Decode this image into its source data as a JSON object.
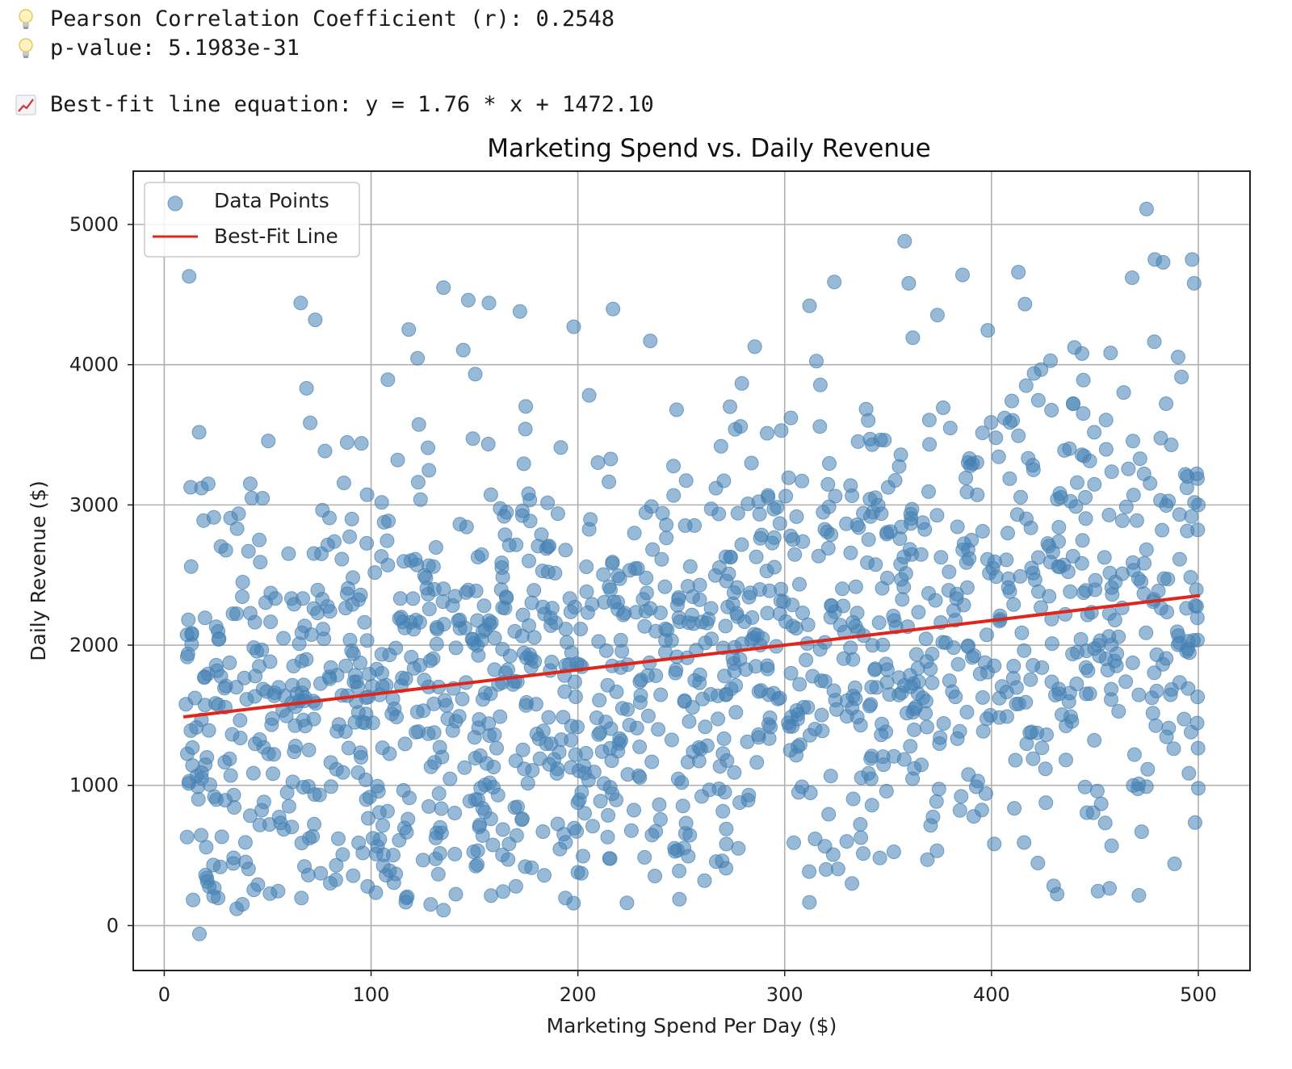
{
  "console": {
    "pearson": "Pearson Correlation Coefficient (r): 0.2548",
    "pvalue": "p-value: 5.1983e-31",
    "equation": "Best-fit line equation: y = 1.76 * x + 1472.10",
    "icons": [
      "lightbulb-icon",
      "lightbulb-icon",
      "chart-increasing-icon"
    ]
  },
  "chart_data": {
    "type": "scatter",
    "title": "Marketing Spend vs. Daily Revenue",
    "xlabel": "Marketing Spend Per Day ($)",
    "ylabel": "Daily Revenue ($)",
    "xlim": [
      -15,
      525
    ],
    "ylim": [
      -320,
      5380
    ],
    "xticks": [
      "0",
      "100",
      "200",
      "300",
      "400",
      "500"
    ],
    "yticks": [
      "0",
      "1000",
      "2000",
      "3000",
      "4000",
      "5000"
    ],
    "grid": true,
    "legend_position": "top-left",
    "series": [
      {
        "name": "Data Points",
        "kind": "scatter",
        "color": "#4682b4",
        "point_count": 1500,
        "x_range": [
          10,
          500
        ],
        "points": [
          {
            "x": 12,
            "y": 4630
          },
          {
            "x": 17,
            "y": -60
          },
          {
            "x": 13,
            "y": 2560
          },
          {
            "x": 18,
            "y": 3120
          },
          {
            "x": 35,
            "y": 120
          },
          {
            "x": 66,
            "y": 4440
          },
          {
            "x": 73,
            "y": 4320
          },
          {
            "x": 135,
            "y": 4550
          },
          {
            "x": 135,
            "y": 110
          },
          {
            "x": 147,
            "y": 4460
          },
          {
            "x": 157,
            "y": 4440
          },
          {
            "x": 172,
            "y": 4380
          },
          {
            "x": 198,
            "y": 4270
          },
          {
            "x": 235,
            "y": 4170
          },
          {
            "x": 312,
            "y": 4420
          },
          {
            "x": 324,
            "y": 4590
          },
          {
            "x": 358,
            "y": 4880
          },
          {
            "x": 360,
            "y": 4580
          },
          {
            "x": 386,
            "y": 4640
          },
          {
            "x": 413,
            "y": 4660
          },
          {
            "x": 475,
            "y": 5110
          },
          {
            "x": 468,
            "y": 4620
          },
          {
            "x": 479,
            "y": 4750
          },
          {
            "x": 483,
            "y": 4730
          },
          {
            "x": 497,
            "y": 4750
          },
          {
            "x": 498,
            "y": 4580
          },
          {
            "x": 369,
            "y": 470
          },
          {
            "x": 249,
            "y": 390
          },
          {
            "x": 200,
            "y": 380
          },
          {
            "x": 320,
            "y": 400
          },
          {
            "x": 500,
            "y": 980
          },
          {
            "x": 500,
            "y": 3000
          }
        ]
      },
      {
        "name": "Best-Fit Line",
        "kind": "line",
        "color": "#e0251b",
        "slope": 1.76,
        "intercept": 1472.1,
        "x": [
          10,
          500
        ],
        "y": [
          1489.7,
          2352.1
        ]
      }
    ]
  }
}
